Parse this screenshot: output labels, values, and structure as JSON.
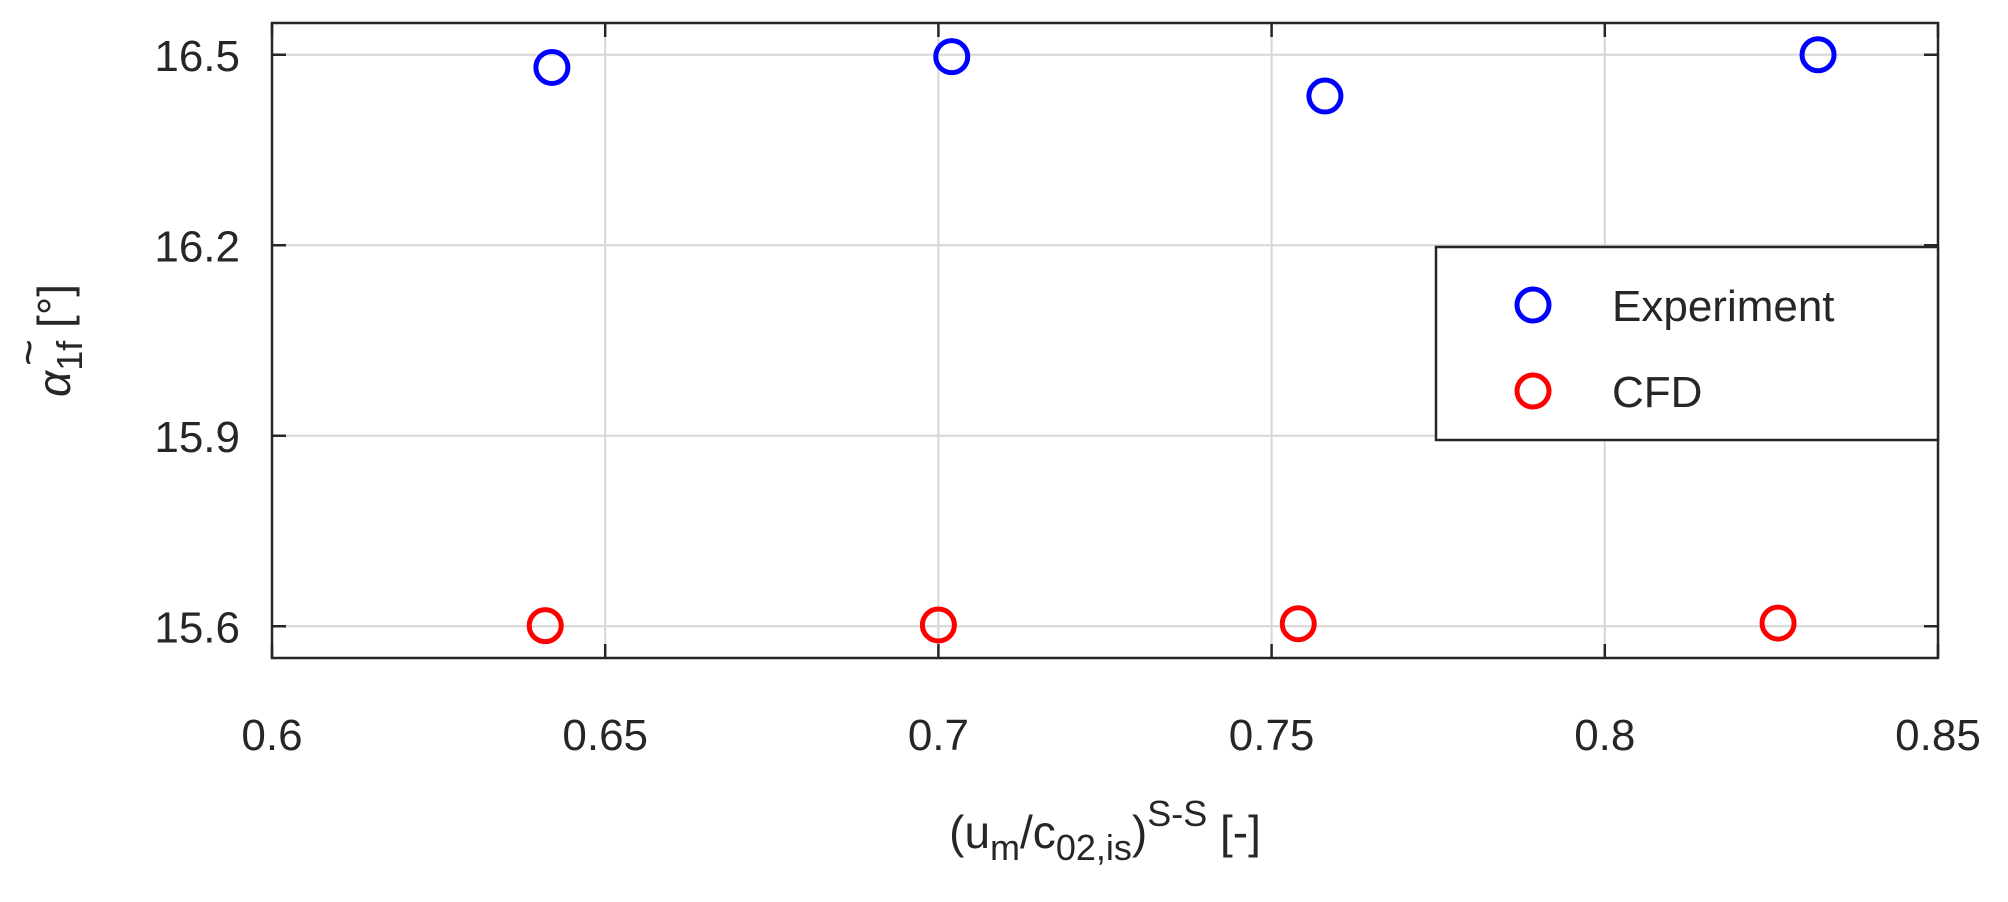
{
  "chart_data": {
    "type": "scatter",
    "xlabel": {
      "base": "(u",
      "sub1": "m",
      "mid": "/c",
      "sub2": "02,is",
      "close": ")",
      "sup": "S-S",
      "unit": " [-]"
    },
    "ylabel": {
      "base": "α",
      "tilde": "~",
      "sub": "1f",
      "unit": " [°]"
    },
    "xlim": [
      0.6,
      0.85
    ],
    "ylim": [
      15.55,
      16.55
    ],
    "x_ticks": [
      0.6,
      0.65,
      0.7,
      0.75,
      0.8,
      0.85
    ],
    "x_tick_labels": [
      "0.6",
      "0.65",
      "0.7",
      "0.75",
      "0.8",
      "0.85"
    ],
    "y_ticks": [
      15.6,
      15.9,
      16.2,
      16.5
    ],
    "y_tick_labels": [
      "15.6",
      "15.9",
      "16.2",
      "16.5"
    ],
    "grid": true,
    "legend_position": "right",
    "series": [
      {
        "name": "Experiment",
        "color": "#0000ff",
        "marker": "circle-open",
        "x": [
          0.642,
          0.702,
          0.758,
          0.832
        ],
        "y": [
          16.48,
          16.497,
          16.435,
          16.5
        ]
      },
      {
        "name": "CFD",
        "color": "#ff0000",
        "marker": "circle-open",
        "x": [
          0.641,
          0.7,
          0.754,
          0.826
        ],
        "y": [
          15.601,
          15.602,
          15.604,
          15.605
        ]
      }
    ]
  }
}
